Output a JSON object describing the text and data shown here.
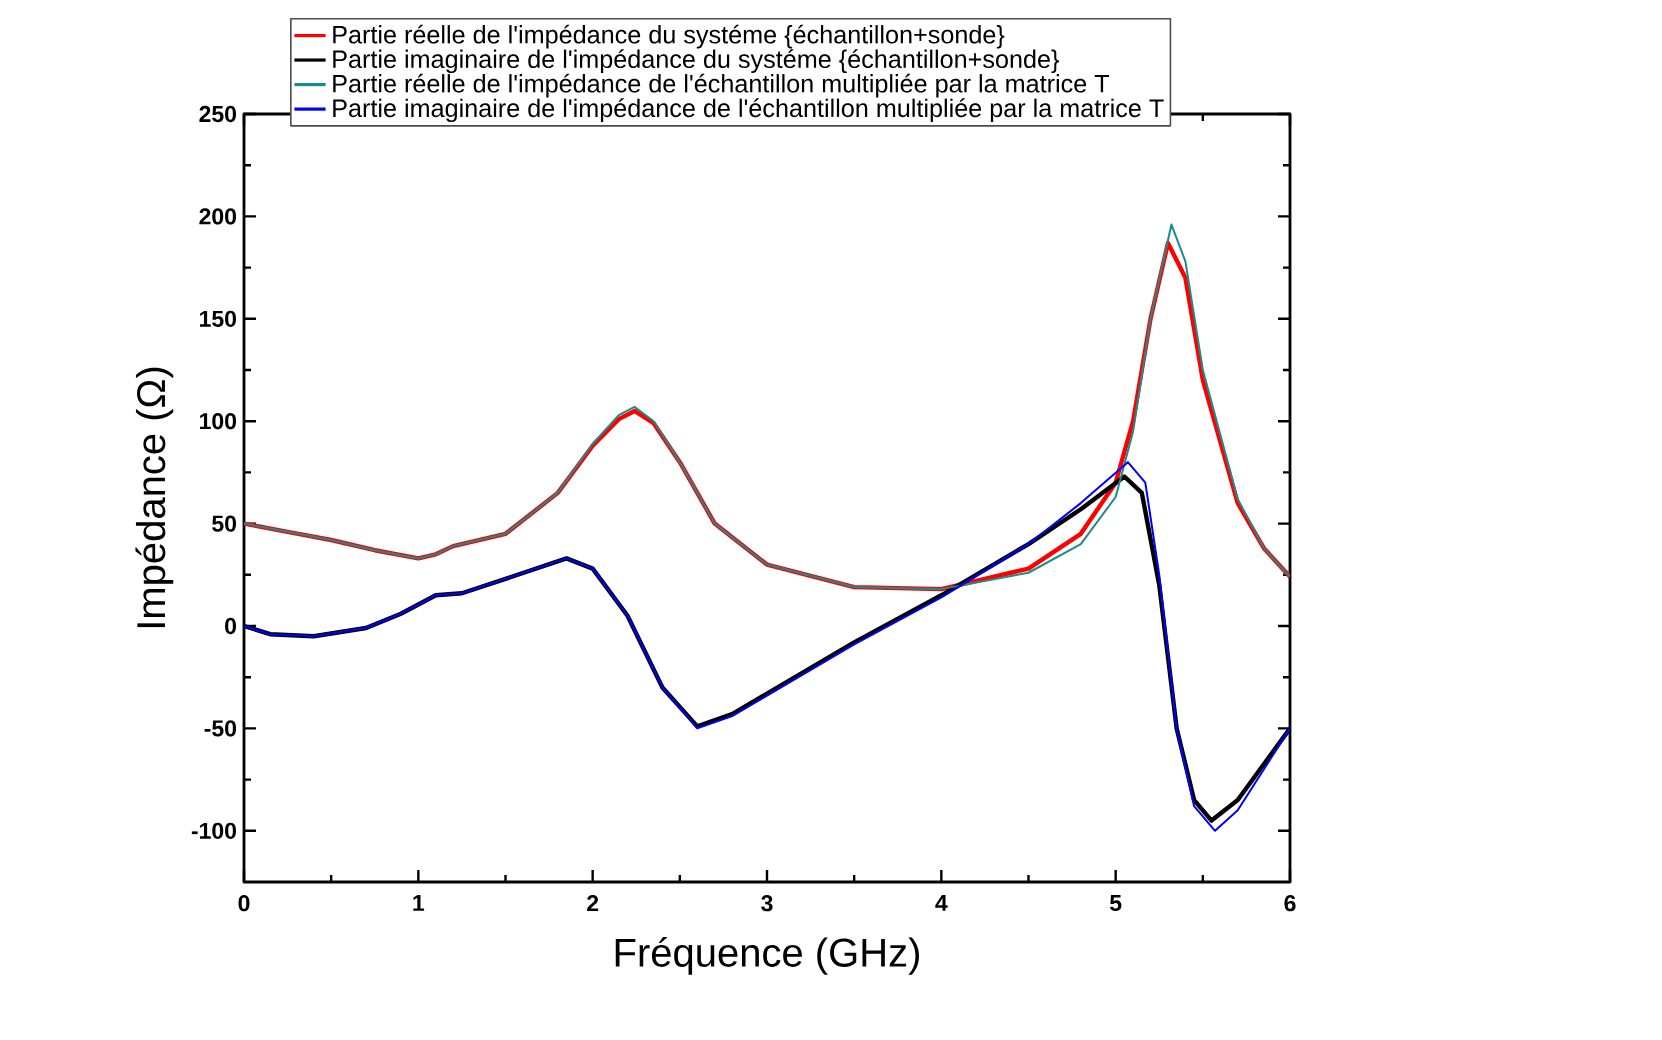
{
  "chart_data": {
    "type": "line",
    "xlabel": "Fréquence (GHz)",
    "ylabel": "Impédance (Ω)",
    "xlim": [
      0,
      6
    ],
    "ylim": [
      -125,
      250
    ],
    "xticks": [
      0,
      1,
      2,
      3,
      4,
      5,
      6
    ],
    "yticks": [
      -100,
      -50,
      0,
      50,
      100,
      150,
      200,
      250
    ],
    "grid": false,
    "legend": "top",
    "marker": "none",
    "line_style": "solid",
    "series": [
      {
        "name": "Partie réelle de l'impédance du systéme {échantillon+sonde}",
        "color": "#ff0000",
        "x": [
          0,
          0.25,
          0.5,
          0.75,
          1.0,
          1.1,
          1.2,
          1.5,
          1.8,
          2.0,
          2.15,
          2.24,
          2.35,
          2.5,
          2.7,
          3.0,
          3.5,
          4.0,
          4.5,
          4.8,
          5.0,
          5.1,
          5.2,
          5.3,
          5.4,
          5.5,
          5.7,
          5.85,
          6.0
        ],
        "values": [
          50,
          46,
          42,
          37,
          33,
          35,
          39,
          45,
          65,
          88,
          101,
          105,
          99,
          80,
          50,
          30,
          19,
          18,
          28,
          45,
          70,
          100,
          150,
          187,
          170,
          120,
          60,
          38,
          24
        ]
      },
      {
        "name": "Partie imaginaire de l'impédance du systéme {échantillon+sonde}",
        "color": "#000000",
        "x": [
          0,
          0.15,
          0.4,
          0.7,
          0.9,
          1.1,
          1.25,
          1.5,
          1.85,
          2.0,
          2.2,
          2.4,
          2.6,
          2.8,
          3.0,
          3.5,
          4.0,
          4.5,
          4.8,
          5.05,
          5.15,
          5.25,
          5.35,
          5.45,
          5.55,
          5.7,
          6.0
        ],
        "values": [
          0,
          -4,
          -5,
          -1,
          6,
          15,
          16,
          23,
          33,
          28,
          5,
          -30,
          -49,
          -43,
          -33,
          -8,
          15,
          40,
          57,
          73,
          65,
          20,
          -50,
          -85,
          -95,
          -85,
          -50
        ]
      },
      {
        "name": "Partie réelle de l'impédance de l'échantillon multipliée par la matrice T",
        "color": "#1a8c8c",
        "x": [
          0,
          0.25,
          0.5,
          0.75,
          1.0,
          1.1,
          1.2,
          1.5,
          1.8,
          2.0,
          2.15,
          2.24,
          2.35,
          2.5,
          2.7,
          3.0,
          3.5,
          4.0,
          4.5,
          4.8,
          5.0,
          5.1,
          5.2,
          5.32,
          5.4,
          5.5,
          5.7,
          5.85,
          6.0
        ],
        "values": [
          50,
          46,
          42,
          37,
          33,
          35,
          39,
          45,
          65,
          89,
          103,
          107,
          100,
          80,
          50,
          30,
          19,
          18,
          26,
          40,
          63,
          95,
          150,
          196,
          178,
          125,
          62,
          38,
          24
        ]
      },
      {
        "name": "Partie imaginaire de l'impédance de l'échantillon multipliée par la matrice T",
        "color": "#0000ff",
        "x": [
          0,
          0.15,
          0.4,
          0.7,
          0.9,
          1.1,
          1.25,
          1.5,
          1.85,
          2.0,
          2.2,
          2.4,
          2.6,
          2.8,
          3.0,
          3.5,
          4.0,
          4.5,
          4.8,
          5.07,
          5.17,
          5.25,
          5.35,
          5.45,
          5.57,
          5.7,
          6.0
        ],
        "values": [
          0,
          -4,
          -5,
          -1,
          6,
          15,
          16,
          23,
          33,
          28,
          5,
          -30,
          -50,
          -44,
          -34,
          -9,
          14,
          40,
          60,
          80,
          70,
          25,
          -50,
          -88,
          -100,
          -90,
          -50
        ]
      }
    ]
  }
}
